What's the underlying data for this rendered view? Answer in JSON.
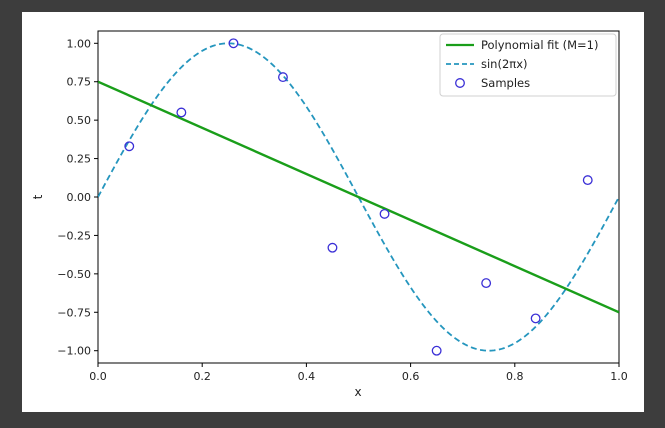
{
  "chart_data": {
    "type": "line",
    "xlabel": "x",
    "ylabel": "t",
    "xlim": [
      0.0,
      1.0
    ],
    "ylim": [
      -1.08,
      1.08
    ],
    "x_ticks": [
      "0.0",
      "0.2",
      "0.4",
      "0.6",
      "0.8",
      "1.0"
    ],
    "y_ticks": [
      "1.00",
      "0.75",
      "0.50",
      "0.25",
      "0.00",
      "−0.25",
      "−0.50",
      "−0.75",
      "−1.00"
    ],
    "grid": false,
    "legend_position": "top-right",
    "series": [
      {
        "name": "Polynomial fit (M=1)",
        "kind": "line",
        "color": "#1a9e1a",
        "x": [
          0.0,
          1.0
        ],
        "y": [
          0.75,
          -0.75
        ]
      },
      {
        "name": "sin(2πx)",
        "kind": "dashed-line",
        "color": "#2596be",
        "function": "sin(2*pi*x)"
      },
      {
        "name": "Samples",
        "kind": "scatter",
        "color": "#3a2fd6",
        "x": [
          0.06,
          0.16,
          0.26,
          0.355,
          0.45,
          0.55,
          0.65,
          0.745,
          0.84,
          0.94
        ],
        "y": [
          0.33,
          0.55,
          1.0,
          0.78,
          -0.33,
          -0.11,
          -1.0,
          -0.56,
          -0.79,
          0.11
        ]
      }
    ]
  }
}
